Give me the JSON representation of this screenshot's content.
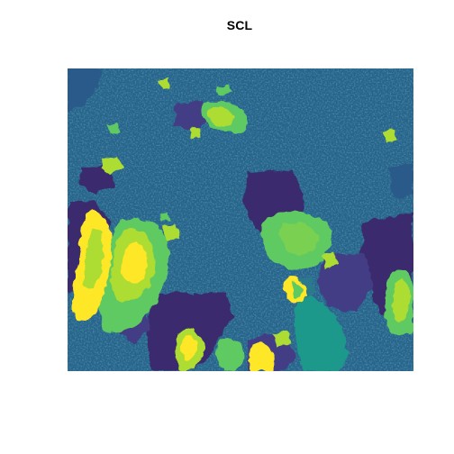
{
  "plot": {
    "title": "SCL"
  },
  "raster": {
    "palette": "viridis",
    "colors": {
      "class_dark_purple": "#3b2a6e",
      "class_purple": "#433e85",
      "class_blue": "#2a5a8a",
      "class_mid_blue": "#26648b",
      "class_teal_blue": "#2c7a8c",
      "class_teal": "#1f998a",
      "class_green": "#5ec962",
      "class_lime": "#addc30",
      "class_yellow": "#fde725"
    }
  }
}
